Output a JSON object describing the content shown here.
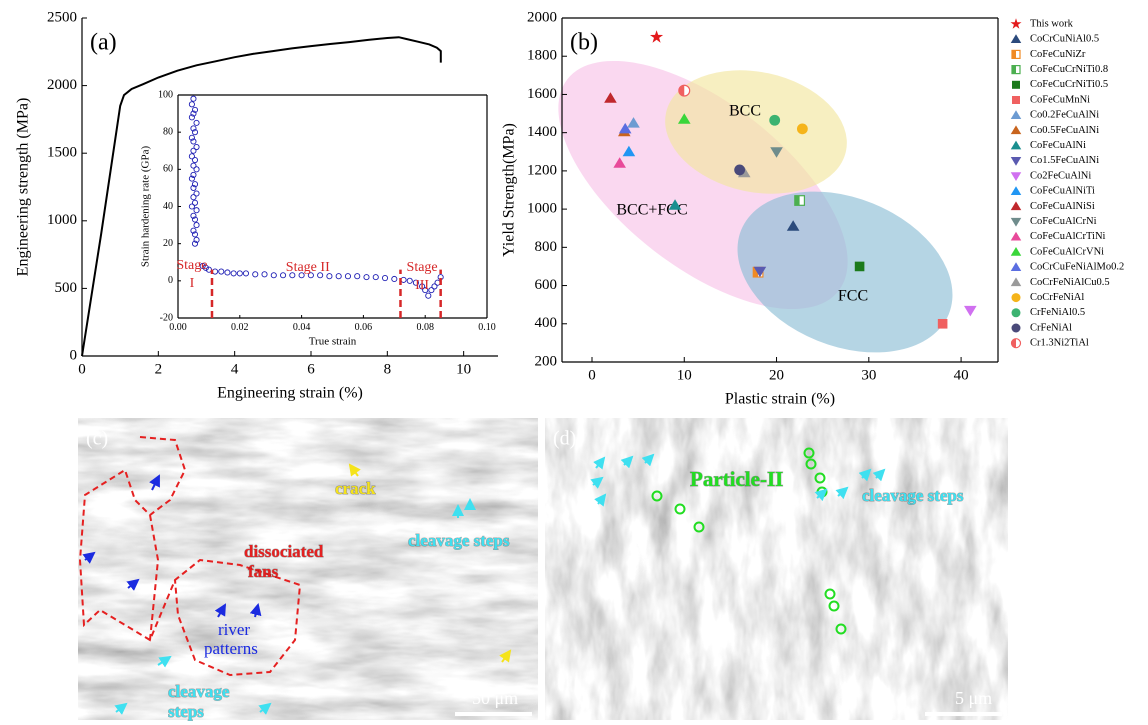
{
  "chart_data": [
    {
      "type": "line",
      "panel_label": "(a)",
      "x_label": "Engineering strain (%)",
      "y_label": "Engineering strength (MPa)",
      "x": [
        0,
        0.5,
        1,
        1.1,
        1.3,
        1.6,
        2,
        2.5,
        3,
        3.5,
        4,
        4.5,
        5,
        5.5,
        6,
        6.5,
        7,
        7.5,
        8,
        8.3,
        8.5,
        8.8,
        9.1,
        9.3,
        9.4,
        9.4
      ],
      "values": [
        0,
        900,
        1850,
        1930,
        1975,
        2010,
        2060,
        2110,
        2150,
        2180,
        2210,
        2235,
        2255,
        2275,
        2292,
        2308,
        2322,
        2338,
        2352,
        2358,
        2345,
        2325,
        2305,
        2280,
        2255,
        2170
      ],
      "color": "#000000",
      "xlim": [
        0,
        10.9
      ],
      "xticks": [
        0,
        2,
        4,
        6,
        8,
        10
      ],
      "ylim": [
        0,
        2500
      ],
      "yticks": [
        0,
        500,
        1000,
        1500,
        2000,
        2500
      ]
    },
    {
      "type": "scatter",
      "x_label": "True strain",
      "y_label": "Strain hardening rate (GPa)",
      "x": [
        0.005,
        0.0045,
        0.0055,
        0.005,
        0.0045,
        0.006,
        0.005,
        0.0055,
        0.0045,
        0.005,
        0.006,
        0.005,
        0.0045,
        0.0055,
        0.005,
        0.006,
        0.005,
        0.0045,
        0.0055,
        0.005,
        0.006,
        0.005,
        0.0055,
        0.0045,
        0.006,
        0.005,
        0.0055,
        0.006,
        0.005,
        0.0055,
        0.006,
        0.0055,
        0.008,
        0.009,
        0.01,
        0.012,
        0.014,
        0.016,
        0.018,
        0.02,
        0.022,
        0.025,
        0.028,
        0.031,
        0.034,
        0.037,
        0.04,
        0.043,
        0.046,
        0.049,
        0.052,
        0.055,
        0.058,
        0.061,
        0.064,
        0.067,
        0.07,
        0.073,
        0.075,
        0.077,
        0.079,
        0.08,
        0.081,
        0.082,
        0.083,
        0.084,
        0.085
      ],
      "values": [
        98,
        95,
        92,
        90,
        88,
        85,
        82,
        80,
        77,
        75,
        72,
        70,
        67,
        65,
        62,
        60,
        57,
        55,
        52,
        50,
        47,
        45,
        42,
        40,
        38,
        35,
        33,
        30,
        27,
        25,
        22,
        20,
        8,
        7,
        6,
        5,
        5,
        4.5,
        4,
        4,
        4,
        3.5,
        3.5,
        3,
        3,
        3,
        3,
        3,
        3,
        2.5,
        2.5,
        2.5,
        2.5,
        2,
        2,
        1.5,
        1,
        0.5,
        0,
        -1,
        -3,
        -5,
        -8,
        -5,
        -3,
        -1,
        2
      ],
      "color": "#1f1fb4",
      "xlim": [
        0,
        0.1
      ],
      "xticks": [
        {
          "value": 0,
          "label": "0.00"
        },
        {
          "value": 0.02,
          "label": "0.02"
        },
        {
          "value": 0.04,
          "label": "0.04"
        },
        {
          "value": 0.06,
          "label": "0.06"
        },
        {
          "value": 0.08,
          "label": "0.08"
        },
        {
          "value": 0.1,
          "label": "0.10"
        }
      ],
      "ylim": [
        -20,
        100
      ],
      "yticks": [
        -20,
        0,
        20,
        40,
        60,
        80,
        100
      ],
      "stage_boundaries": [
        0.011,
        0.072,
        0.085
      ],
      "boundary_color": "#d62728",
      "stages": [
        [
          "Stage",
          "I"
        ],
        [
          "Stage II"
        ],
        [
          "Stage",
          "III"
        ]
      ]
    },
    {
      "type": "scatter",
      "panel_label": "(b)",
      "x_label": "Plastic strain (%)",
      "y_label": "Yield Strength(MPa)",
      "xlim": [
        -3.25,
        44
      ],
      "xticks": [
        0,
        10,
        20,
        30,
        40
      ],
      "ylim": [
        200,
        2000
      ],
      "yticks": [
        200,
        400,
        600,
        800,
        1000,
        1200,
        1400,
        1600,
        1800,
        2000
      ],
      "regions": [
        {
          "label": "BCC+FCC",
          "color": "#f7c3e8"
        },
        {
          "label": "BCC",
          "color": "#f3e7a0"
        },
        {
          "label": "FCC",
          "color": "#8dbfd6"
        }
      ],
      "series": [
        {
          "name": "This work",
          "color": "#e31a1c",
          "marker": "star",
          "x": [
            7
          ],
          "y": [
            1900
          ]
        },
        {
          "name": "CoCrCuNiAl0.5",
          "color": "#2b4a7c",
          "marker": "triangle",
          "x": [
            21.8
          ],
          "y": [
            910
          ]
        },
        {
          "name": "CoFeCuNiZr",
          "color": "#f08a24",
          "marker": "square-half",
          "x": [
            18
          ],
          "y": [
            670
          ]
        },
        {
          "name": "CoFeCuCrNiTi0.8",
          "color": "#4caf50",
          "marker": "square-half",
          "x": [
            22.5
          ],
          "y": [
            1045
          ]
        },
        {
          "name": "CoFeCuCrNiTi0.5",
          "color": "#1b7a1b",
          "marker": "square",
          "x": [
            29
          ],
          "y": [
            700
          ]
        },
        {
          "name": "CoFeCuMnNi",
          "color": "#f06060",
          "marker": "square",
          "x": [
            38
          ],
          "y": [
            400
          ]
        },
        {
          "name": "Co0.2FeCuAlNi",
          "color": "#6c9bd2",
          "marker": "triangle",
          "x": [
            4.5
          ],
          "y": [
            1450
          ]
        },
        {
          "name": "Co0.5FeCuAlNi",
          "color": "#c8641e",
          "marker": "triangle",
          "x": [
            3.5
          ],
          "y": [
            1405
          ]
        },
        {
          "name": "CoFeCuAlNi",
          "color": "#1a8f8f",
          "marker": "triangle",
          "x": [
            9
          ],
          "y": [
            1020
          ]
        },
        {
          "name": "Co1.5FeCuAlNi",
          "color": "#5a5ab0",
          "marker": "triangle-down",
          "x": [
            18.2
          ],
          "y": [
            675
          ]
        },
        {
          "name": "Co2FeCuAlNi",
          "color": "#d070f0",
          "marker": "triangle-down",
          "x": [
            41
          ],
          "y": [
            470
          ]
        },
        {
          "name": "CoFeCuAlNiTi",
          "color": "#2196f3",
          "marker": "triangle",
          "x": [
            4
          ],
          "y": [
            1300
          ]
        },
        {
          "name": "CoFeCuAlNiSi",
          "color": "#c0282d",
          "marker": "triangle",
          "x": [
            2
          ],
          "y": [
            1580
          ]
        },
        {
          "name": "CoFeCuAlCrNi",
          "color": "#6f8c8c",
          "marker": "triangle-down",
          "x": [
            20
          ],
          "y": [
            1300
          ]
        },
        {
          "name": "CoFeCuAlCrTiNi",
          "color": "#e84a9a",
          "marker": "triangle",
          "x": [
            3
          ],
          "y": [
            1240
          ]
        },
        {
          "name": "CoFeCuAlCrVNi",
          "color": "#3ad63a",
          "marker": "triangle",
          "x": [
            10
          ],
          "y": [
            1470
          ]
        },
        {
          "name": "CoCrCuFeNiAlMo0.2",
          "color": "#5b6ee1",
          "marker": "triangle",
          "x": [
            3.6
          ],
          "y": [
            1420
          ]
        },
        {
          "name": "CoCrFeNiAlCu0.5",
          "color": "#9a9a9a",
          "marker": "triangle",
          "x": [
            16.5
          ],
          "y": [
            1190
          ]
        },
        {
          "name": "CoCrFeNiAl",
          "color": "#f5b41a",
          "marker": "circle",
          "x": [
            22.8
          ],
          "y": [
            1420
          ]
        },
        {
          "name": "CrFeNiAl0.5",
          "color": "#3cb371",
          "marker": "circle",
          "x": [
            19.8
          ],
          "y": [
            1465
          ]
        },
        {
          "name": "CrFeNiAl",
          "color": "#4a4a7a",
          "marker": "circle",
          "x": [
            16
          ],
          "y": [
            1205
          ]
        },
        {
          "name": "Cr1.3Ni2TiAl",
          "color": "#f06060",
          "marker": "circle-half",
          "x": [
            10
          ],
          "y": [
            1620
          ]
        }
      ]
    }
  ],
  "micrographs": [
    {
      "label": "(c)",
      "crack": "crack",
      "cleavage_top": "cleavage steps",
      "fans": [
        "dissociated",
        "fans"
      ],
      "river": [
        "river",
        "patterns"
      ],
      "cleavage_bottom": [
        "cleavage",
        "steps"
      ],
      "scale_bar": "50 μm"
    },
    {
      "label": "(d)",
      "particle": "Particle-II",
      "cleavage": "cleavage steps",
      "scale_bar": "5 μm"
    }
  ]
}
